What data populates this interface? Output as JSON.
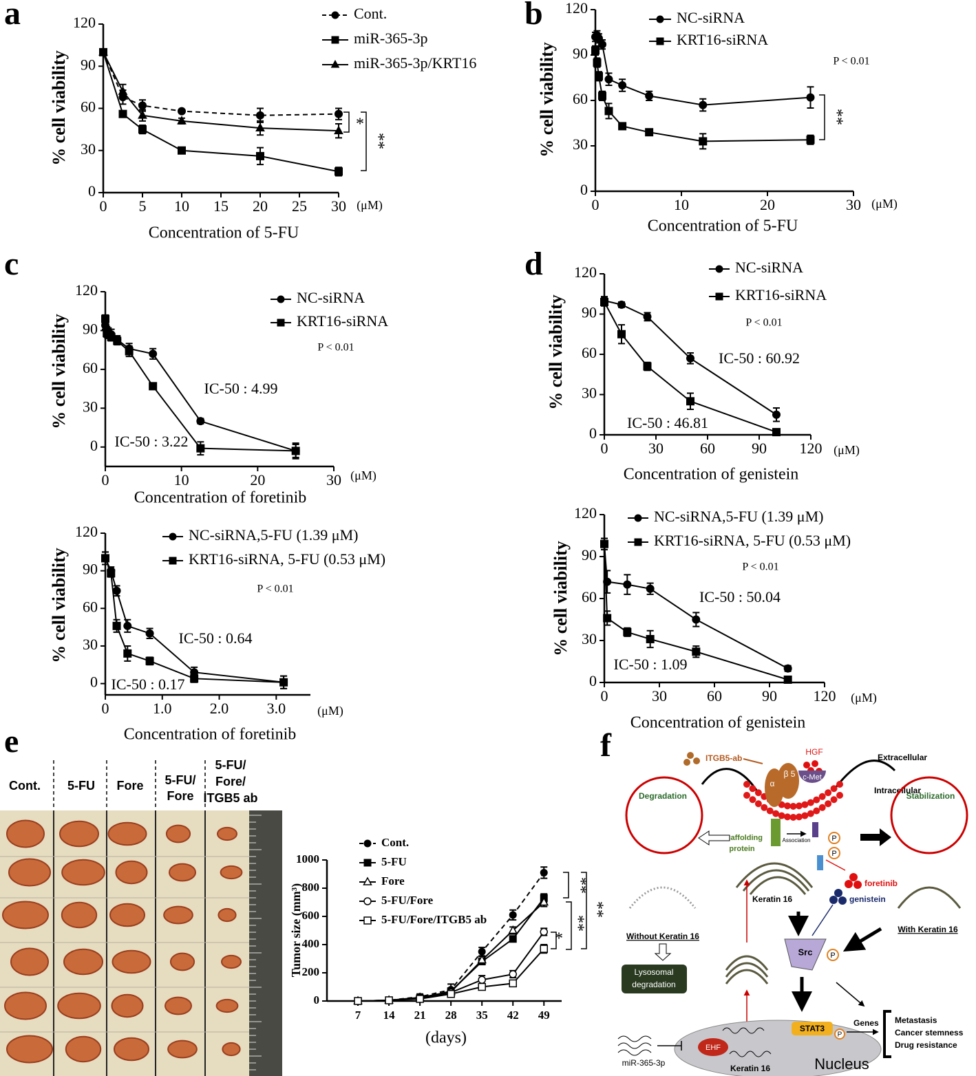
{
  "panel_labels": [
    "a",
    "b",
    "c",
    "d",
    "e",
    "f"
  ],
  "chart_data": [
    {
      "type": "line",
      "x_label": "Concentration of 5-FU",
      "x_unit": "(μM)",
      "y_label": "% cell viability",
      "x": [
        0,
        2.5,
        5,
        10,
        20,
        30
      ],
      "xlim": [
        0,
        30
      ],
      "xticks": [
        0,
        5,
        10,
        15,
        20,
        25,
        30
      ],
      "ylim": [
        0,
        120
      ],
      "yticks": [
        0,
        30,
        60,
        90,
        120
      ],
      "series": [
        {
          "name": "Cont.",
          "color": "#000000",
          "marker": "circle",
          "dash": true,
          "values": [
            100,
            68,
            62,
            58,
            55,
            56
          ],
          "errors": [
            2,
            5,
            4,
            1,
            5,
            4
          ]
        },
        {
          "name": "miR-365-3p",
          "color": "#000000",
          "marker": "square",
          "dash": false,
          "values": [
            100,
            56,
            45,
            30,
            26,
            15
          ],
          "errors": [
            2,
            2,
            3,
            2,
            6,
            3
          ]
        },
        {
          "name": "miR-365-3p/KRT16",
          "color": "#000000",
          "marker": "triangle",
          "dash": false,
          "values": [
            100,
            72,
            55,
            51,
            46,
            44
          ],
          "errors": [
            2,
            5,
            4,
            2,
            5,
            5
          ]
        }
      ],
      "annotations": [
        "*",
        "**"
      ]
    },
    {
      "type": "line",
      "x_label": "Concentration of 5-FU",
      "x_unit": "(μM)",
      "y_label": "% cell viability",
      "x": [
        0,
        0.2,
        0.4,
        0.8,
        1.56,
        3.13,
        6.25,
        12.5,
        25
      ],
      "xlim": [
        0,
        30
      ],
      "xticks": [
        0,
        10,
        20,
        30
      ],
      "ylim": [
        0,
        120
      ],
      "yticks": [
        0,
        30,
        60,
        90,
        120
      ],
      "series": [
        {
          "name": "NC-siRNA",
          "color": "#000000",
          "marker": "circle",
          "dash": false,
          "values": [
            102,
            103,
            101,
            97,
            74,
            70,
            63,
            57,
            62
          ],
          "errors": [
            3,
            3,
            3,
            3,
            4,
            4,
            3,
            4,
            7
          ]
        },
        {
          "name": "KRT16-siRNA",
          "color": "#000000",
          "marker": "square",
          "dash": false,
          "values": [
            93,
            85,
            76,
            63,
            53,
            43,
            39,
            33,
            34
          ],
          "errors": [
            3,
            3,
            3,
            3,
            5,
            2,
            2,
            5,
            3
          ]
        }
      ],
      "annotations": [
        "P < 0.01",
        "**"
      ]
    },
    {
      "type": "line",
      "x_label": "Concentration of foretinib",
      "x_unit": "(μM)",
      "y_label": "% cell viability",
      "x": [
        0,
        0.2,
        0.39,
        0.78,
        1.56,
        3.13,
        6.25,
        12.5,
        25
      ],
      "xlim": [
        0,
        30
      ],
      "xticks": [
        0,
        10,
        20,
        30
      ],
      "ylim": [
        -15,
        120
      ],
      "yticks": [
        0,
        30,
        60,
        90,
        120
      ],
      "series": [
        {
          "name": "NC-siRNA",
          "color": "#000000",
          "marker": "circle",
          "dash": false,
          "values": [
            94,
            90,
            88,
            87,
            83,
            76,
            72,
            20,
            -3
          ],
          "errors": [
            3,
            3,
            4,
            4,
            3,
            4,
            4,
            2,
            6
          ]
        },
        {
          "name": "KRT16-siRNA",
          "color": "#000000",
          "marker": "square",
          "dash": false,
          "values": [
            99,
            88,
            87,
            85,
            82,
            74,
            47,
            -1,
            -3
          ],
          "errors": [
            3,
            3,
            3,
            3,
            3,
            4,
            2,
            5,
            5
          ]
        }
      ],
      "annotations": [
        "P < 0.01",
        "IC-50 : 4.99",
        "IC-50 : 3.22"
      ]
    },
    {
      "type": "line",
      "x_label": "Concentration of foretinib",
      "x_unit": "(μM)",
      "y_label": "% cell viability",
      "x": [
        0,
        0.1,
        0.2,
        0.39,
        0.78,
        1.56,
        3.13
      ],
      "xlim": [
        0,
        3.6
      ],
      "xticks": [
        0,
        {
          "value": 1,
          "label": "1.0"
        },
        {
          "value": 2,
          "label": "2.0"
        },
        {
          "value": 3,
          "label": "3.0"
        }
      ],
      "ylim": [
        -9,
        120
      ],
      "yticks": [
        0,
        30,
        60,
        90,
        120
      ],
      "series": [
        {
          "name": "NC-siRNA,5-FU (1.39 μM)",
          "color": "#000000",
          "marker": "circle",
          "dash": false,
          "values": [
            100,
            90,
            74,
            46,
            40,
            9,
            1
          ],
          "errors": [
            5,
            3,
            4,
            5,
            4,
            4,
            5
          ]
        },
        {
          "name": "KRT16-siRNA, 5-FU (0.53 μM)",
          "color": "#000000",
          "marker": "square",
          "dash": false,
          "values": [
            100,
            88,
            46,
            24,
            18,
            4,
            1
          ],
          "errors": [
            5,
            3,
            5,
            6,
            3,
            3,
            5
          ]
        }
      ],
      "annotations": [
        "P < 0.01",
        "IC-50 : 0.64",
        "IC-50 : 0.17"
      ]
    },
    {
      "type": "line",
      "x_label": "Concentration of genistein",
      "x_unit": "(μM)",
      "y_label": "% cell viability",
      "x": [
        0,
        10,
        25,
        50,
        100
      ],
      "xlim": [
        0,
        120
      ],
      "xticks": [
        0,
        30,
        60,
        90,
        120
      ],
      "ylim": [
        0,
        120
      ],
      "yticks": [
        0,
        30,
        60,
        90,
        120
      ],
      "series": [
        {
          "name": "NC-siRNA",
          "color": "#000000",
          "marker": "circle",
          "dash": false,
          "values": [
            100,
            97,
            88,
            57,
            15
          ],
          "errors": [
            3,
            2,
            3,
            4,
            5
          ]
        },
        {
          "name": "KRT16-siRNA",
          "color": "#000000",
          "marker": "square",
          "dash": false,
          "values": [
            99,
            75,
            51,
            25,
            2
          ],
          "errors": [
            3,
            7,
            3,
            6,
            2
          ]
        }
      ],
      "annotations": [
        "P < 0.01",
        "IC-50 : 60.92",
        "IC-50 : 46.81"
      ]
    },
    {
      "type": "line",
      "x_label": "Concentration of genistein",
      "x_unit": "(μM)",
      "y_label": "% cell viability",
      "x": [
        0,
        1.56,
        12.5,
        25,
        50,
        100
      ],
      "xlim": [
        0,
        120
      ],
      "xticks": [
        0,
        30,
        60,
        90,
        120
      ],
      "ylim": [
        0,
        120
      ],
      "yticks": [
        0,
        30,
        60,
        90,
        120
      ],
      "series": [
        {
          "name": "NC-siRNA,5-FU (1.39 μM)",
          "color": "#000000",
          "marker": "circle",
          "dash": false,
          "values": [
            99,
            72,
            70,
            67,
            45,
            10
          ],
          "errors": [
            4,
            8,
            7,
            4,
            5,
            2
          ]
        },
        {
          "name": "KRT16-siRNA, 5-FU (0.53 μM)",
          "color": "#000000",
          "marker": "square",
          "dash": false,
          "values": [
            99,
            46,
            36,
            31,
            22,
            2
          ],
          "errors": [
            4,
            5,
            3,
            6,
            4,
            2
          ]
        }
      ],
      "annotations": [
        "P < 0.01",
        "IC-50 : 50.04",
        "IC-50 : 1.09"
      ]
    },
    {
      "type": "line",
      "x_label": "(days)",
      "y_label": "Tumor size (mm³)",
      "x": [
        7,
        14,
        21,
        28,
        35,
        42,
        49
      ],
      "xlim": [
        0,
        53
      ],
      "xticks": [
        7,
        14,
        21,
        28,
        35,
        42,
        49
      ],
      "ylim": [
        0,
        1000
      ],
      "yticks": [
        0,
        200,
        400,
        600,
        800,
        1000
      ],
      "series": [
        {
          "name": "Cont.",
          "color": "#000000",
          "marker": "circle",
          "dash": true,
          "values": [
            0,
            5,
            30,
            80,
            350,
            610,
            910
          ],
          "errors": [
            0,
            5,
            20,
            40,
            30,
            35,
            40
          ]
        },
        {
          "name": "5-FU",
          "color": "#000000",
          "marker": "square",
          "dash": false,
          "values": [
            0,
            5,
            20,
            70,
            280,
            440,
            730
          ],
          "errors": [
            0,
            5,
            10,
            20,
            20,
            20,
            30
          ]
        },
        {
          "name": "Fore",
          "color": "#000000",
          "marker": "open-triangle",
          "dash": false,
          "values": [
            0,
            5,
            25,
            65,
            290,
            500,
            700
          ],
          "errors": [
            0,
            5,
            10,
            20,
            25,
            25,
            30
          ]
        },
        {
          "name": "5-FU/Fore",
          "color": "#000000",
          "marker": "open-circle",
          "dash": false,
          "values": [
            0,
            5,
            20,
            60,
            150,
            190,
            490
          ],
          "errors": [
            0,
            5,
            10,
            20,
            30,
            25,
            25
          ]
        },
        {
          "name": "5-FU/Fore/ITGB5 ab",
          "color": "#000000",
          "marker": "open-square",
          "dash": false,
          "values": [
            0,
            5,
            15,
            50,
            100,
            125,
            370
          ],
          "errors": [
            0,
            5,
            10,
            15,
            15,
            15,
            30
          ]
        }
      ],
      "annotations": [
        "**",
        "**",
        "**",
        "*"
      ]
    }
  ],
  "photo": {
    "column_labels": [
      [
        "Cont."
      ],
      [
        "5-FU"
      ],
      [
        "Fore"
      ],
      [
        "5-FU/",
        "Fore"
      ],
      [
        "5-FU/",
        "Fore/",
        "ITGB5 ab"
      ]
    ]
  },
  "diagram": {
    "itgb5_ab": "ITGB5-ab",
    "hgf": "HGF",
    "extracellular": "Extracellular",
    "intracellular": "Intracellular",
    "alpha": "α",
    "beta5": "β 5",
    "c_met": "c-Met",
    "degradation": "Degradation",
    "stabilization": "Stabilization",
    "scaffolding": [
      "Scaffolding",
      "protein"
    ],
    "association": "Association",
    "phospho": "P",
    "keratin16": "Keratin 16",
    "foretinib": "foretinib",
    "genistein": "genistein",
    "without_k16": "Without Keratin 16",
    "with_k16": "With Keratin 16",
    "lysosomal": [
      "Lysosomal",
      "degradation"
    ],
    "src": "Src",
    "mir": "miR-365-3p",
    "ehf": "EHF",
    "stat3": "STAT3",
    "genes": "Genes",
    "nucleus": "Nucleus",
    "nucleus_k16": "Keratin 16",
    "outcomes": [
      "Metastasis",
      "Cancer stemness",
      "Drug resistance"
    ]
  }
}
